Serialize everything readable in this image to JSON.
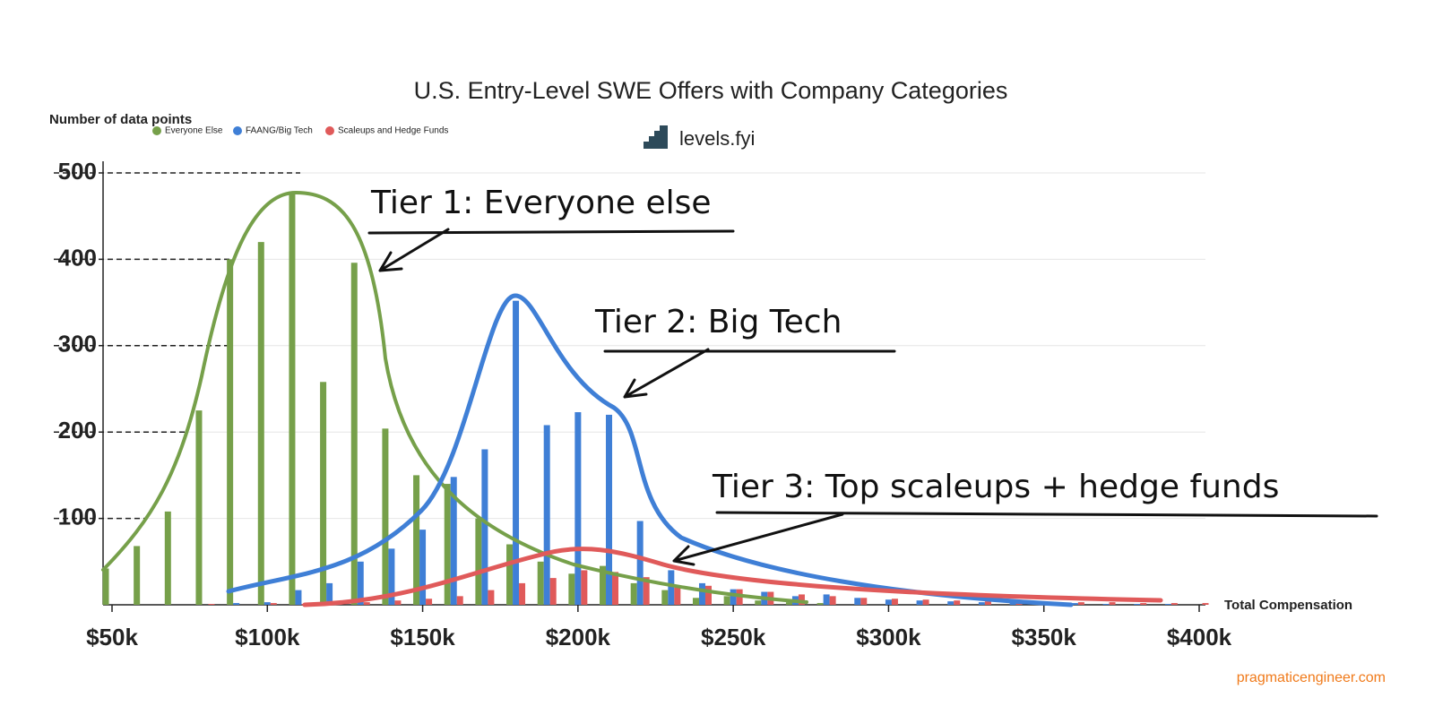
{
  "chart_data": {
    "type": "bar",
    "title": "U.S. Entry-Level SWE Offers with Company Categories",
    "subtitle": "levels.fyi",
    "y_label": "Number of data points",
    "x_label": "Total Compensation",
    "x": [
      50000,
      60000,
      70000,
      80000,
      90000,
      100000,
      110000,
      120000,
      130000,
      140000,
      150000,
      160000,
      170000,
      180000,
      190000,
      200000,
      210000,
      220000,
      230000,
      240000,
      250000,
      260000,
      270000,
      280000,
      290000,
      300000,
      310000,
      320000,
      330000,
      340000,
      350000,
      360000,
      370000,
      380000,
      390000,
      400000
    ],
    "series": [
      {
        "name": "Everyone Else",
        "color": "#76a04a",
        "values": [
          42,
          68,
          108,
          225,
          400,
          420,
          478,
          258,
          396,
          204,
          150,
          140,
          100,
          70,
          50,
          36,
          45,
          25,
          17,
          8,
          10,
          5,
          3,
          2,
          0,
          0,
          0,
          0,
          0,
          0,
          0,
          0,
          0,
          0,
          0,
          0
        ]
      },
      {
        "name": "FAANG/Big Tech",
        "color": "#3f7fd6",
        "values": [
          0,
          0,
          0,
          0,
          2,
          3,
          17,
          25,
          50,
          65,
          87,
          148,
          180,
          352,
          208,
          223,
          220,
          97,
          40,
          25,
          18,
          15,
          10,
          12,
          8,
          6,
          5,
          4,
          3,
          3,
          2,
          2,
          1,
          1,
          1,
          0
        ]
      },
      {
        "name": "Scaleups and Hedge Funds",
        "color": "#e05a5a",
        "values": [
          0,
          0,
          0,
          1,
          0,
          2,
          1,
          2,
          3,
          5,
          7,
          10,
          17,
          25,
          31,
          40,
          38,
          32,
          20,
          22,
          18,
          15,
          12,
          10,
          8,
          7,
          6,
          5,
          4,
          4,
          3,
          3,
          3,
          2,
          2,
          2
        ]
      }
    ],
    "xlim": [
      50000,
      400000
    ],
    "xticks": [
      {
        "value": 50000,
        "label": "$50k"
      },
      {
        "value": 100000,
        "label": "$100k"
      },
      {
        "value": 150000,
        "label": "$150k"
      },
      {
        "value": 200000,
        "label": "$200k"
      },
      {
        "value": 250000,
        "label": "$250k"
      },
      {
        "value": 300000,
        "label": "$300k"
      },
      {
        "value": 350000,
        "label": "$350k"
      },
      {
        "value": 400000,
        "label": "$400k"
      }
    ],
    "ylim": [
      0,
      500
    ],
    "yticks": [
      100,
      200,
      300,
      400,
      500
    ],
    "grid": true,
    "annotations": [
      "Tier 1: Everyone else",
      "Tier 2: Big Tech",
      "Tier 3: Top scaleups + hedge funds"
    ],
    "source": "pragmaticengineer.com"
  }
}
